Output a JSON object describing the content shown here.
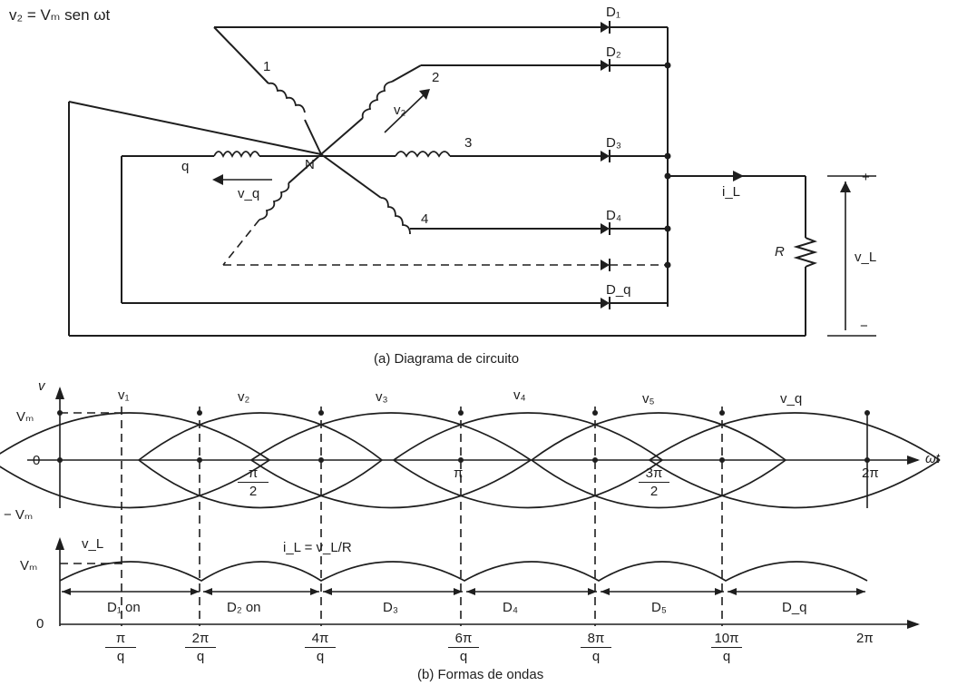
{
  "circuit": {
    "supply_equation": "v₂ = Vₘ sen ωt",
    "neutral": "N",
    "phase_labels": [
      "1",
      "2",
      "3",
      "4",
      "q"
    ],
    "phase_voltage_labels": [
      "v₂",
      "v_q"
    ],
    "diodes": [
      "D₁",
      "D₂",
      "D₃",
      "D₄",
      "D_q"
    ],
    "load_current": "i_L",
    "load_resistor": "R",
    "load_voltage": "v_L",
    "plus": "+",
    "minus": "−",
    "caption": "(a) Diagrama de circuito"
  },
  "waveforms": {
    "v_axis": "v",
    "vm": "Vₘ",
    "neg_vm": "− Vₘ",
    "zero": "0",
    "wt": "ωt",
    "phase_names": [
      "v₁",
      "v₂",
      "v₃",
      "v₄",
      "v₅",
      "v_q"
    ],
    "pi_over_2": {
      "num": "π",
      "den": "2"
    },
    "pi": "π",
    "three_pi_over_2": {
      "num": "3π",
      "den": "2"
    },
    "two_pi": "2π",
    "vl_axis": "v_L",
    "vl_vm": "Vₘ",
    "vl_zero": "0",
    "current_relation": "i_L = v_L/R",
    "conduction": [
      "D₁ on",
      "D₂ on",
      "D₃",
      "D₄",
      "D₅",
      "D_q"
    ],
    "ticks": [
      {
        "num": "π",
        "den": "q"
      },
      {
        "num": "2π",
        "den": "q"
      },
      {
        "num": "4π",
        "den": "q"
      },
      {
        "num": "6π",
        "den": "q"
      },
      {
        "num": "8π",
        "den": "q"
      },
      {
        "num": "10π",
        "den": "q"
      }
    ],
    "tick_end": "2π",
    "caption": "(b) Formas de ondas"
  }
}
